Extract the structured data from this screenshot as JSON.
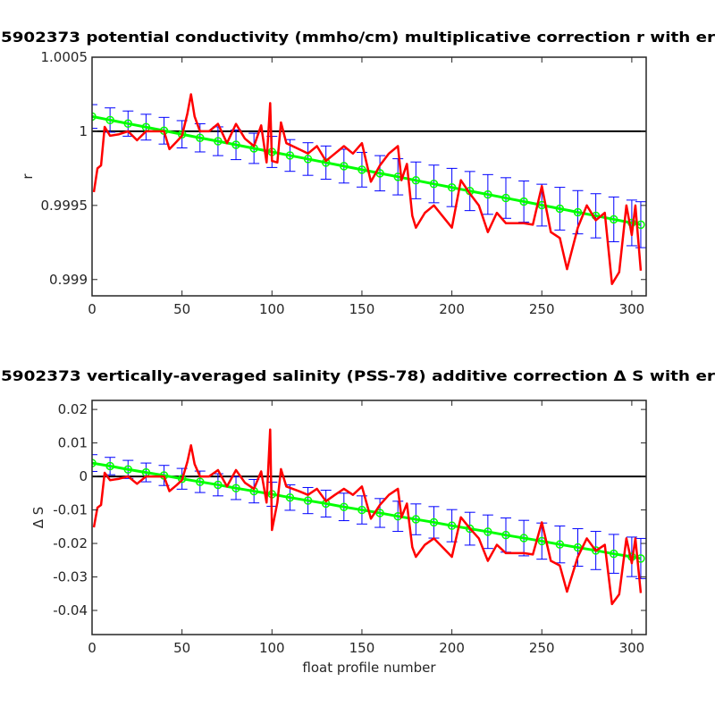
{
  "chart_data": [
    {
      "type": "line",
      "title": "5902373 potential conductivity (mmho/cm) multiplicative correction r with er",
      "ylabel": "r",
      "xlim": [
        0,
        308
      ],
      "xticks": [
        0,
        50,
        100,
        150,
        200,
        250,
        300
      ],
      "ylim": [
        0.99889,
        1.0005
      ],
      "yticks": [
        0.999,
        0.9995,
        1,
        1.0005
      ],
      "reference": 1,
      "reference_color": "#000000",
      "series": [
        {
          "color": "#ff0000",
          "x": [
            1,
            3,
            5,
            7,
            10,
            15,
            20,
            25,
            30,
            40,
            43,
            47,
            50,
            53,
            55,
            57,
            60,
            65,
            70,
            75,
            80,
            85,
            90,
            94,
            97,
            99,
            100,
            103,
            105,
            108,
            115,
            120,
            125,
            130,
            135,
            140,
            145,
            150,
            155,
            160,
            165,
            170,
            172,
            175,
            178,
            180,
            185,
            190,
            200,
            205,
            210,
            215,
            220,
            225,
            230,
            240,
            245,
            250,
            255,
            260,
            264,
            270,
            275,
            280,
            285,
            289,
            293,
            297,
            300,
            302,
            305
          ],
          "values": [
            0.99959,
            0.99975,
            0.99977,
            1.00003,
            0.99997,
            0.99998,
            1.0,
            0.99994,
            1.0,
            1.0,
            0.99988,
            0.99993,
            0.99997,
            1.00012,
            1.00025,
            1.0001,
            1.0,
            1.0,
            1.00005,
            0.99992,
            1.00005,
            0.99995,
            0.9999,
            1.00004,
            0.99979,
            1.00019,
            0.9998,
            0.99979,
            1.00006,
            0.99992,
            0.99988,
            0.99985,
            0.9999,
            0.9998,
            0.99985,
            0.9999,
            0.99985,
            0.99992,
            0.99966,
            0.99977,
            0.99985,
            0.9999,
            0.99967,
            0.99978,
            0.99943,
            0.99935,
            0.99945,
            0.9995,
            0.99935,
            0.99967,
            0.99958,
            0.9995,
            0.99932,
            0.99945,
            0.99938,
            0.99938,
            0.99937,
            0.99963,
            0.99932,
            0.99928,
            0.99907,
            0.99935,
            0.9995,
            0.9994,
            0.99945,
            0.99897,
            0.99905,
            0.9995,
            0.9993,
            0.9995,
            0.99906
          ]
        }
      ],
      "fit": {
        "color": "#00ff00",
        "error_color": "#0000ff",
        "x": [
          0,
          10,
          20,
          30,
          40,
          50,
          60,
          70,
          80,
          90,
          100,
          110,
          120,
          130,
          140,
          150,
          160,
          170,
          180,
          190,
          200,
          210,
          220,
          230,
          240,
          250,
          260,
          270,
          280,
          290,
          300,
          305
        ],
        "values": [
          1.0001,
          1.000076,
          1.000052,
          1.000028,
          1.000004,
          0.99998,
          0.999956,
          0.999933,
          0.999909,
          0.999885,
          0.999861,
          0.999837,
          0.999813,
          0.999789,
          0.999765,
          0.999741,
          0.999717,
          0.999693,
          0.999669,
          0.999645,
          0.999621,
          0.999597,
          0.999574,
          0.99955,
          0.999526,
          0.999502,
          0.999478,
          0.999454,
          0.99943,
          0.999406,
          0.999382,
          0.99937
        ],
        "errors": [
          8e-05,
          8.2e-05,
          8.5e-05,
          8.7e-05,
          9e-05,
          9.2e-05,
          9.5e-05,
          9.7e-05,
          0.0001,
          0.000102,
          0.000105,
          0.000107,
          0.00011,
          0.000112,
          0.000114,
          0.000117,
          0.000119,
          0.000122,
          0.000124,
          0.000127,
          0.000129,
          0.000132,
          0.000134,
          0.000137,
          0.000139,
          0.000141,
          0.000144,
          0.000146,
          0.000149,
          0.000151,
          0.000154,
          0.000155
        ]
      }
    },
    {
      "type": "line",
      "title": "5902373 vertically-averaged salinity (PSS-78) additive correction Δ S with er",
      "ylabel": "Δ S",
      "xlabel": "float profile number",
      "xlim": [
        0,
        308
      ],
      "xticks": [
        0,
        50,
        100,
        150,
        200,
        250,
        300
      ],
      "ylim": [
        -0.0472,
        0.0227
      ],
      "yticks": [
        -0.04,
        -0.03,
        -0.02,
        -0.01,
        0,
        0.01,
        0.02
      ],
      "reference": 0,
      "reference_color": "#000000",
      "series": [
        {
          "color": "#ff0000",
          "x": [
            1,
            3,
            5,
            7,
            10,
            15,
            20,
            25,
            30,
            40,
            43,
            47,
            50,
            53,
            55,
            57,
            60,
            65,
            70,
            75,
            80,
            85,
            90,
            94,
            97,
            99,
            100,
            103,
            105,
            108,
            115,
            120,
            125,
            130,
            135,
            140,
            145,
            150,
            155,
            160,
            165,
            170,
            172,
            175,
            178,
            180,
            185,
            190,
            200,
            205,
            210,
            215,
            220,
            225,
            230,
            240,
            245,
            250,
            255,
            260,
            264,
            270,
            275,
            280,
            285,
            289,
            293,
            297,
            300,
            302,
            305
          ],
          "values": [
            -0.0152,
            -0.0093,
            -0.0085,
            0.0011,
            -0.0011,
            -0.0007,
            0,
            -0.0022,
            0,
            0,
            -0.0044,
            -0.0026,
            -0.0011,
            0.0044,
            0.0093,
            0.0037,
            0,
            0,
            0.0019,
            -0.003,
            0.0019,
            -0.0019,
            -0.0037,
            0.0015,
            -0.0078,
            0.014,
            -0.016,
            -0.0078,
            0.0022,
            -0.003,
            -0.0044,
            -0.0055,
            -0.0037,
            -0.0074,
            -0.0055,
            -0.0037,
            -0.0055,
            -0.003,
            -0.0126,
            -0.0085,
            -0.0055,
            -0.0037,
            -0.0122,
            -0.0081,
            -0.0211,
            -0.024,
            -0.0204,
            -0.0185,
            -0.024,
            -0.0122,
            -0.0155,
            -0.0185,
            -0.0252,
            -0.0204,
            -0.0229,
            -0.0229,
            -0.0233,
            -0.0137,
            -0.0252,
            -0.0266,
            -0.0344,
            -0.024,
            -0.0185,
            -0.0222,
            -0.0204,
            -0.0381,
            -0.0352,
            -0.0185,
            -0.0259,
            -0.0185,
            -0.0348
          ]
        }
      ],
      "fit": {
        "color": "#00ff00",
        "error_color": "#0000ff",
        "x": [
          0,
          10,
          20,
          30,
          40,
          50,
          60,
          70,
          80,
          90,
          100,
          110,
          120,
          130,
          140,
          150,
          160,
          170,
          180,
          190,
          200,
          210,
          220,
          230,
          240,
          250,
          260,
          270,
          280,
          290,
          300,
          305
        ],
        "values": [
          0.004,
          0.0031,
          0.0021,
          0.0012,
          0.0003,
          -0.0007,
          -0.0016,
          -0.0025,
          -0.0035,
          -0.0044,
          -0.0053,
          -0.0063,
          -0.0072,
          -0.0081,
          -0.0091,
          -0.01,
          -0.0109,
          -0.0119,
          -0.0128,
          -0.0137,
          -0.0147,
          -0.0156,
          -0.0165,
          -0.0175,
          -0.0184,
          -0.0193,
          -0.0203,
          -0.0212,
          -0.0221,
          -0.0231,
          -0.024,
          -0.0245
        ],
        "errors": [
          0.0025,
          0.0026,
          0.0027,
          0.0028,
          0.003,
          0.0031,
          0.0032,
          0.0033,
          0.0034,
          0.0035,
          0.0036,
          0.0038,
          0.0039,
          0.004,
          0.0041,
          0.0042,
          0.0043,
          0.0045,
          0.0046,
          0.0047,
          0.0048,
          0.0049,
          0.005,
          0.0051,
          0.0053,
          0.0054,
          0.0055,
          0.0056,
          0.0057,
          0.0058,
          0.0059,
          0.006
        ]
      }
    }
  ]
}
